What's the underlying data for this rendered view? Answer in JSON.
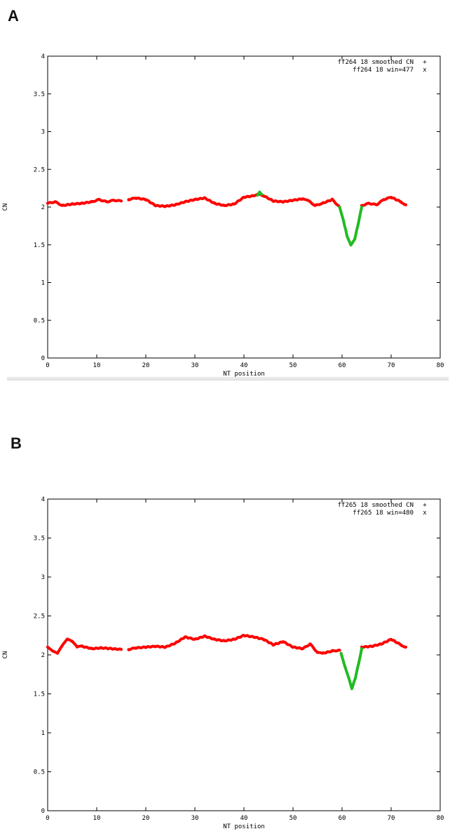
{
  "panels": [
    {
      "letter": "A"
    },
    {
      "letter": "B"
    }
  ],
  "colors": {
    "smoothed": "#ff0000",
    "window": "#22bb22",
    "axis": "#000000"
  },
  "chart_data": [
    {
      "type": "scatter",
      "title": "",
      "xlabel": "NT position",
      "ylabel": "CN",
      "xlim": [
        0,
        80
      ],
      "ylim": [
        0,
        4
      ],
      "xticks": [
        "0",
        "10",
        "20",
        "30",
        "40",
        "50",
        "60",
        "70",
        "80"
      ],
      "yticks": [
        "0",
        "0.5",
        "1",
        "1.5",
        "2",
        "2.5",
        "3",
        "3.5",
        "4"
      ],
      "legend_position": "top-right",
      "series": [
        {
          "name": "ff264 18 smoothed CN",
          "marker": "+",
          "color": "#ff0000",
          "segments": [
            [
              [
                0,
                2.05
              ],
              [
                1.5,
                2.07
              ],
              [
                3,
                2.02
              ],
              [
                5,
                2.04
              ],
              [
                7,
                2.05
              ],
              [
                9,
                2.07
              ],
              [
                10.5,
                2.1
              ],
              [
                12,
                2.07
              ],
              [
                13.5,
                2.09
              ],
              [
                15,
                2.08
              ]
            ],
            [
              [
                16.5,
                2.1
              ],
              [
                18,
                2.12
              ],
              [
                20,
                2.1
              ],
              [
                22,
                2.02
              ],
              [
                24,
                2.01
              ],
              [
                26,
                2.03
              ],
              [
                28,
                2.07
              ],
              [
                30,
                2.1
              ],
              [
                32,
                2.12
              ],
              [
                34,
                2.05
              ],
              [
                36,
                2.02
              ],
              [
                38,
                2.04
              ],
              [
                40,
                2.13
              ],
              [
                42,
                2.15
              ],
              [
                43,
                2.18
              ],
              [
                44,
                2.15
              ],
              [
                46,
                2.08
              ],
              [
                48,
                2.07
              ],
              [
                50,
                2.09
              ],
              [
                52,
                2.11
              ],
              [
                53,
                2.09
              ],
              [
                54.5,
                2.02
              ],
              [
                56,
                2.05
              ],
              [
                58,
                2.1
              ],
              [
                59.5,
                2.0
              ]
            ],
            [
              [
                64,
                2.02
              ],
              [
                65.5,
                2.05
              ],
              [
                67,
                2.03
              ],
              [
                68.5,
                2.1
              ],
              [
                70,
                2.13
              ],
              [
                72,
                2.07
              ],
              [
                73,
                2.03
              ]
            ]
          ]
        },
        {
          "name": "ff264 18 win=477",
          "marker": "x",
          "color": "#22bb22",
          "segments": [
            [
              [
                42.8,
                2.16
              ],
              [
                43.2,
                2.2
              ],
              [
                43.6,
                2.17
              ]
            ],
            [
              [
                59.5,
                2.0
              ],
              [
                60.3,
                1.82
              ],
              [
                61,
                1.62
              ],
              [
                61.8,
                1.5
              ],
              [
                62.6,
                1.58
              ],
              [
                63.3,
                1.78
              ],
              [
                64,
                2.0
              ]
            ]
          ]
        }
      ]
    },
    {
      "type": "scatter",
      "title": "",
      "xlabel": "NT position",
      "ylabel": "CN",
      "xlim": [
        0,
        80
      ],
      "ylim": [
        0,
        4
      ],
      "xticks": [
        "0",
        "10",
        "20",
        "30",
        "40",
        "50",
        "60",
        "70",
        "80"
      ],
      "yticks": [
        "0",
        "0.5",
        "1",
        "1.5",
        "2",
        "2.5",
        "3",
        "3.5",
        "4"
      ],
      "legend_position": "top-right",
      "series": [
        {
          "name": "ff265 18 smoothed CN",
          "marker": "+",
          "color": "#ff0000",
          "segments": [
            [
              [
                0,
                2.1
              ],
              [
                1,
                2.05
              ],
              [
                2,
                2.02
              ],
              [
                3,
                2.12
              ],
              [
                4,
                2.2
              ],
              [
                5,
                2.17
              ],
              [
                6,
                2.1
              ],
              [
                7,
                2.11
              ],
              [
                9,
                2.08
              ],
              [
                11,
                2.09
              ],
              [
                13,
                2.08
              ],
              [
                15,
                2.07
              ]
            ],
            [
              [
                16.5,
                2.07
              ],
              [
                18,
                2.09
              ],
              [
                20,
                2.1
              ],
              [
                22,
                2.11
              ],
              [
                24,
                2.1
              ],
              [
                26,
                2.15
              ],
              [
                28,
                2.23
              ],
              [
                30,
                2.2
              ],
              [
                32,
                2.24
              ],
              [
                34,
                2.2
              ],
              [
                36,
                2.18
              ],
              [
                38,
                2.2
              ],
              [
                40,
                2.25
              ],
              [
                42,
                2.23
              ],
              [
                44,
                2.2
              ],
              [
                46,
                2.13
              ],
              [
                48,
                2.17
              ],
              [
                50,
                2.1
              ],
              [
                52,
                2.08
              ],
              [
                53.5,
                2.14
              ],
              [
                55,
                2.03
              ],
              [
                56,
                2.02
              ],
              [
                58,
                2.05
              ],
              [
                59.5,
                2.06
              ]
            ],
            [
              [
                64,
                2.1
              ],
              [
                66,
                2.11
              ],
              [
                68,
                2.14
              ],
              [
                70,
                2.2
              ],
              [
                72,
                2.13
              ],
              [
                73,
                2.1
              ]
            ]
          ]
        },
        {
          "name": "ff265 18 win=480",
          "marker": "x",
          "color": "#22bb22",
          "segments": [
            [
              [
                59.8,
                2.02
              ],
              [
                60.6,
                1.85
              ],
              [
                61.4,
                1.7
              ],
              [
                62,
                1.57
              ],
              [
                62.7,
                1.7
              ],
              [
                63.4,
                1.9
              ],
              [
                64,
                2.08
              ]
            ]
          ]
        }
      ]
    }
  ]
}
